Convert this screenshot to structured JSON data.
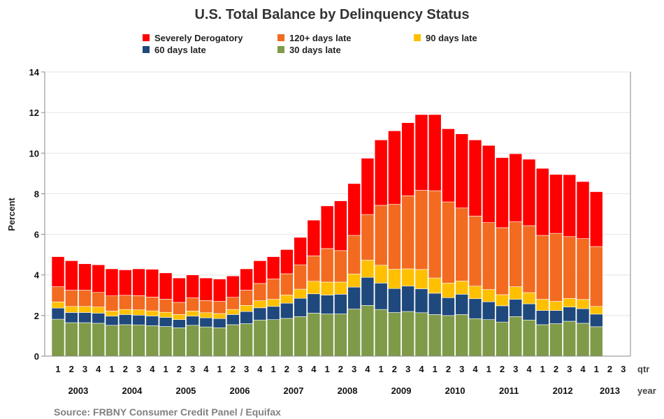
{
  "chart_data": {
    "type": "bar",
    "stacked": true,
    "title": "U.S. Total Balance by Delinquency Status",
    "ylabel": "Percent",
    "ylim": [
      0,
      14
    ],
    "yticks": [
      0,
      2,
      4,
      6,
      8,
      10,
      12,
      14
    ],
    "grid": true,
    "legend_position": "top",
    "quarter_axis_label": "qtr",
    "year_axis_label": "year",
    "source": "Source: FRBNY  Consumer Credit Panel / Equifax",
    "quarters": [
      "1",
      "2",
      "3",
      "4",
      "1",
      "2",
      "3",
      "4",
      "1",
      "2",
      "3",
      "4",
      "1",
      "2",
      "3",
      "4",
      "1",
      "2",
      "3",
      "4",
      "1",
      "2",
      "3",
      "4",
      "1",
      "2",
      "3",
      "4",
      "1",
      "2",
      "3",
      "4",
      "1",
      "2",
      "3",
      "4",
      "1",
      "2",
      "3",
      "4",
      "1",
      "2",
      "3"
    ],
    "years": [
      {
        "label": "2003",
        "quarters": 4
      },
      {
        "label": "2004",
        "quarters": 4
      },
      {
        "label": "2005",
        "quarters": 4
      },
      {
        "label": "2006",
        "quarters": 4
      },
      {
        "label": "2007",
        "quarters": 4
      },
      {
        "label": "2008",
        "quarters": 4
      },
      {
        "label": "2009",
        "quarters": 4
      },
      {
        "label": "2010",
        "quarters": 4
      },
      {
        "label": "2011",
        "quarters": 4
      },
      {
        "label": "2012",
        "quarters": 4
      },
      {
        "label": "2013",
        "quarters": 3
      }
    ],
    "series": [
      {
        "name": "30 days late",
        "color": "#7f9a48",
        "values": [
          1.82,
          1.65,
          1.65,
          1.62,
          1.52,
          1.55,
          1.54,
          1.5,
          1.46,
          1.4,
          1.52,
          1.44,
          1.4,
          1.55,
          1.6,
          1.78,
          1.8,
          1.86,
          1.95,
          2.12,
          2.08,
          2.08,
          2.32,
          2.5,
          2.3,
          2.15,
          2.2,
          2.14,
          2.05,
          2.0,
          2.05,
          1.85,
          1.8,
          1.68,
          1.95,
          1.78,
          1.55,
          1.6,
          1.72,
          1.62,
          1.45,
          null,
          null
        ]
      },
      {
        "name": "60 days late",
        "color": "#1f497d",
        "values": [
          0.55,
          0.5,
          0.5,
          0.5,
          0.45,
          0.5,
          0.48,
          0.48,
          0.45,
          0.4,
          0.45,
          0.45,
          0.45,
          0.5,
          0.6,
          0.6,
          0.65,
          0.75,
          0.9,
          0.95,
          0.93,
          0.97,
          1.08,
          1.38,
          1.3,
          1.18,
          1.25,
          1.18,
          1.05,
          0.88,
          1.0,
          0.98,
          0.88,
          0.8,
          0.85,
          0.8,
          0.7,
          0.65,
          0.7,
          0.72,
          0.62,
          null,
          null
        ]
      },
      {
        "name": "90 days late",
        "color": "#ffc000",
        "values": [
          0.3,
          0.3,
          0.3,
          0.3,
          0.25,
          0.25,
          0.26,
          0.25,
          0.25,
          0.25,
          0.25,
          0.25,
          0.25,
          0.25,
          0.3,
          0.35,
          0.35,
          0.4,
          0.45,
          0.62,
          0.64,
          0.6,
          0.65,
          0.85,
          0.88,
          0.95,
          0.85,
          0.95,
          0.75,
          0.72,
          0.65,
          0.62,
          0.6,
          0.55,
          0.62,
          0.55,
          0.55,
          0.45,
          0.42,
          0.45,
          0.38,
          null,
          null
        ]
      },
      {
        "name": "120+ days late",
        "color": "#f26b21",
        "values": [
          0.75,
          0.8,
          0.8,
          0.72,
          0.75,
          0.7,
          0.7,
          0.68,
          0.65,
          0.6,
          0.65,
          0.6,
          0.6,
          0.6,
          0.75,
          0.85,
          1.0,
          1.05,
          1.2,
          1.25,
          1.65,
          1.55,
          1.9,
          2.25,
          2.95,
          3.2,
          3.6,
          3.9,
          4.3,
          4.0,
          3.6,
          3.45,
          3.3,
          3.3,
          3.2,
          3.3,
          3.15,
          3.35,
          3.05,
          3.0,
          2.95,
          null,
          null
        ]
      },
      {
        "name": "Severely Derogatory",
        "color": "#ff0000",
        "values": [
          1.48,
          1.45,
          1.3,
          1.36,
          1.33,
          1.25,
          1.32,
          1.37,
          1.29,
          1.2,
          1.13,
          1.11,
          1.1,
          1.05,
          1.05,
          1.12,
          1.1,
          1.19,
          1.35,
          1.76,
          2.1,
          2.45,
          2.55,
          2.77,
          3.22,
          3.62,
          3.6,
          3.73,
          3.75,
          3.6,
          3.65,
          3.75,
          3.8,
          3.45,
          3.35,
          3.27,
          3.3,
          2.9,
          3.05,
          2.81,
          2.7,
          null,
          null
        ]
      }
    ]
  }
}
